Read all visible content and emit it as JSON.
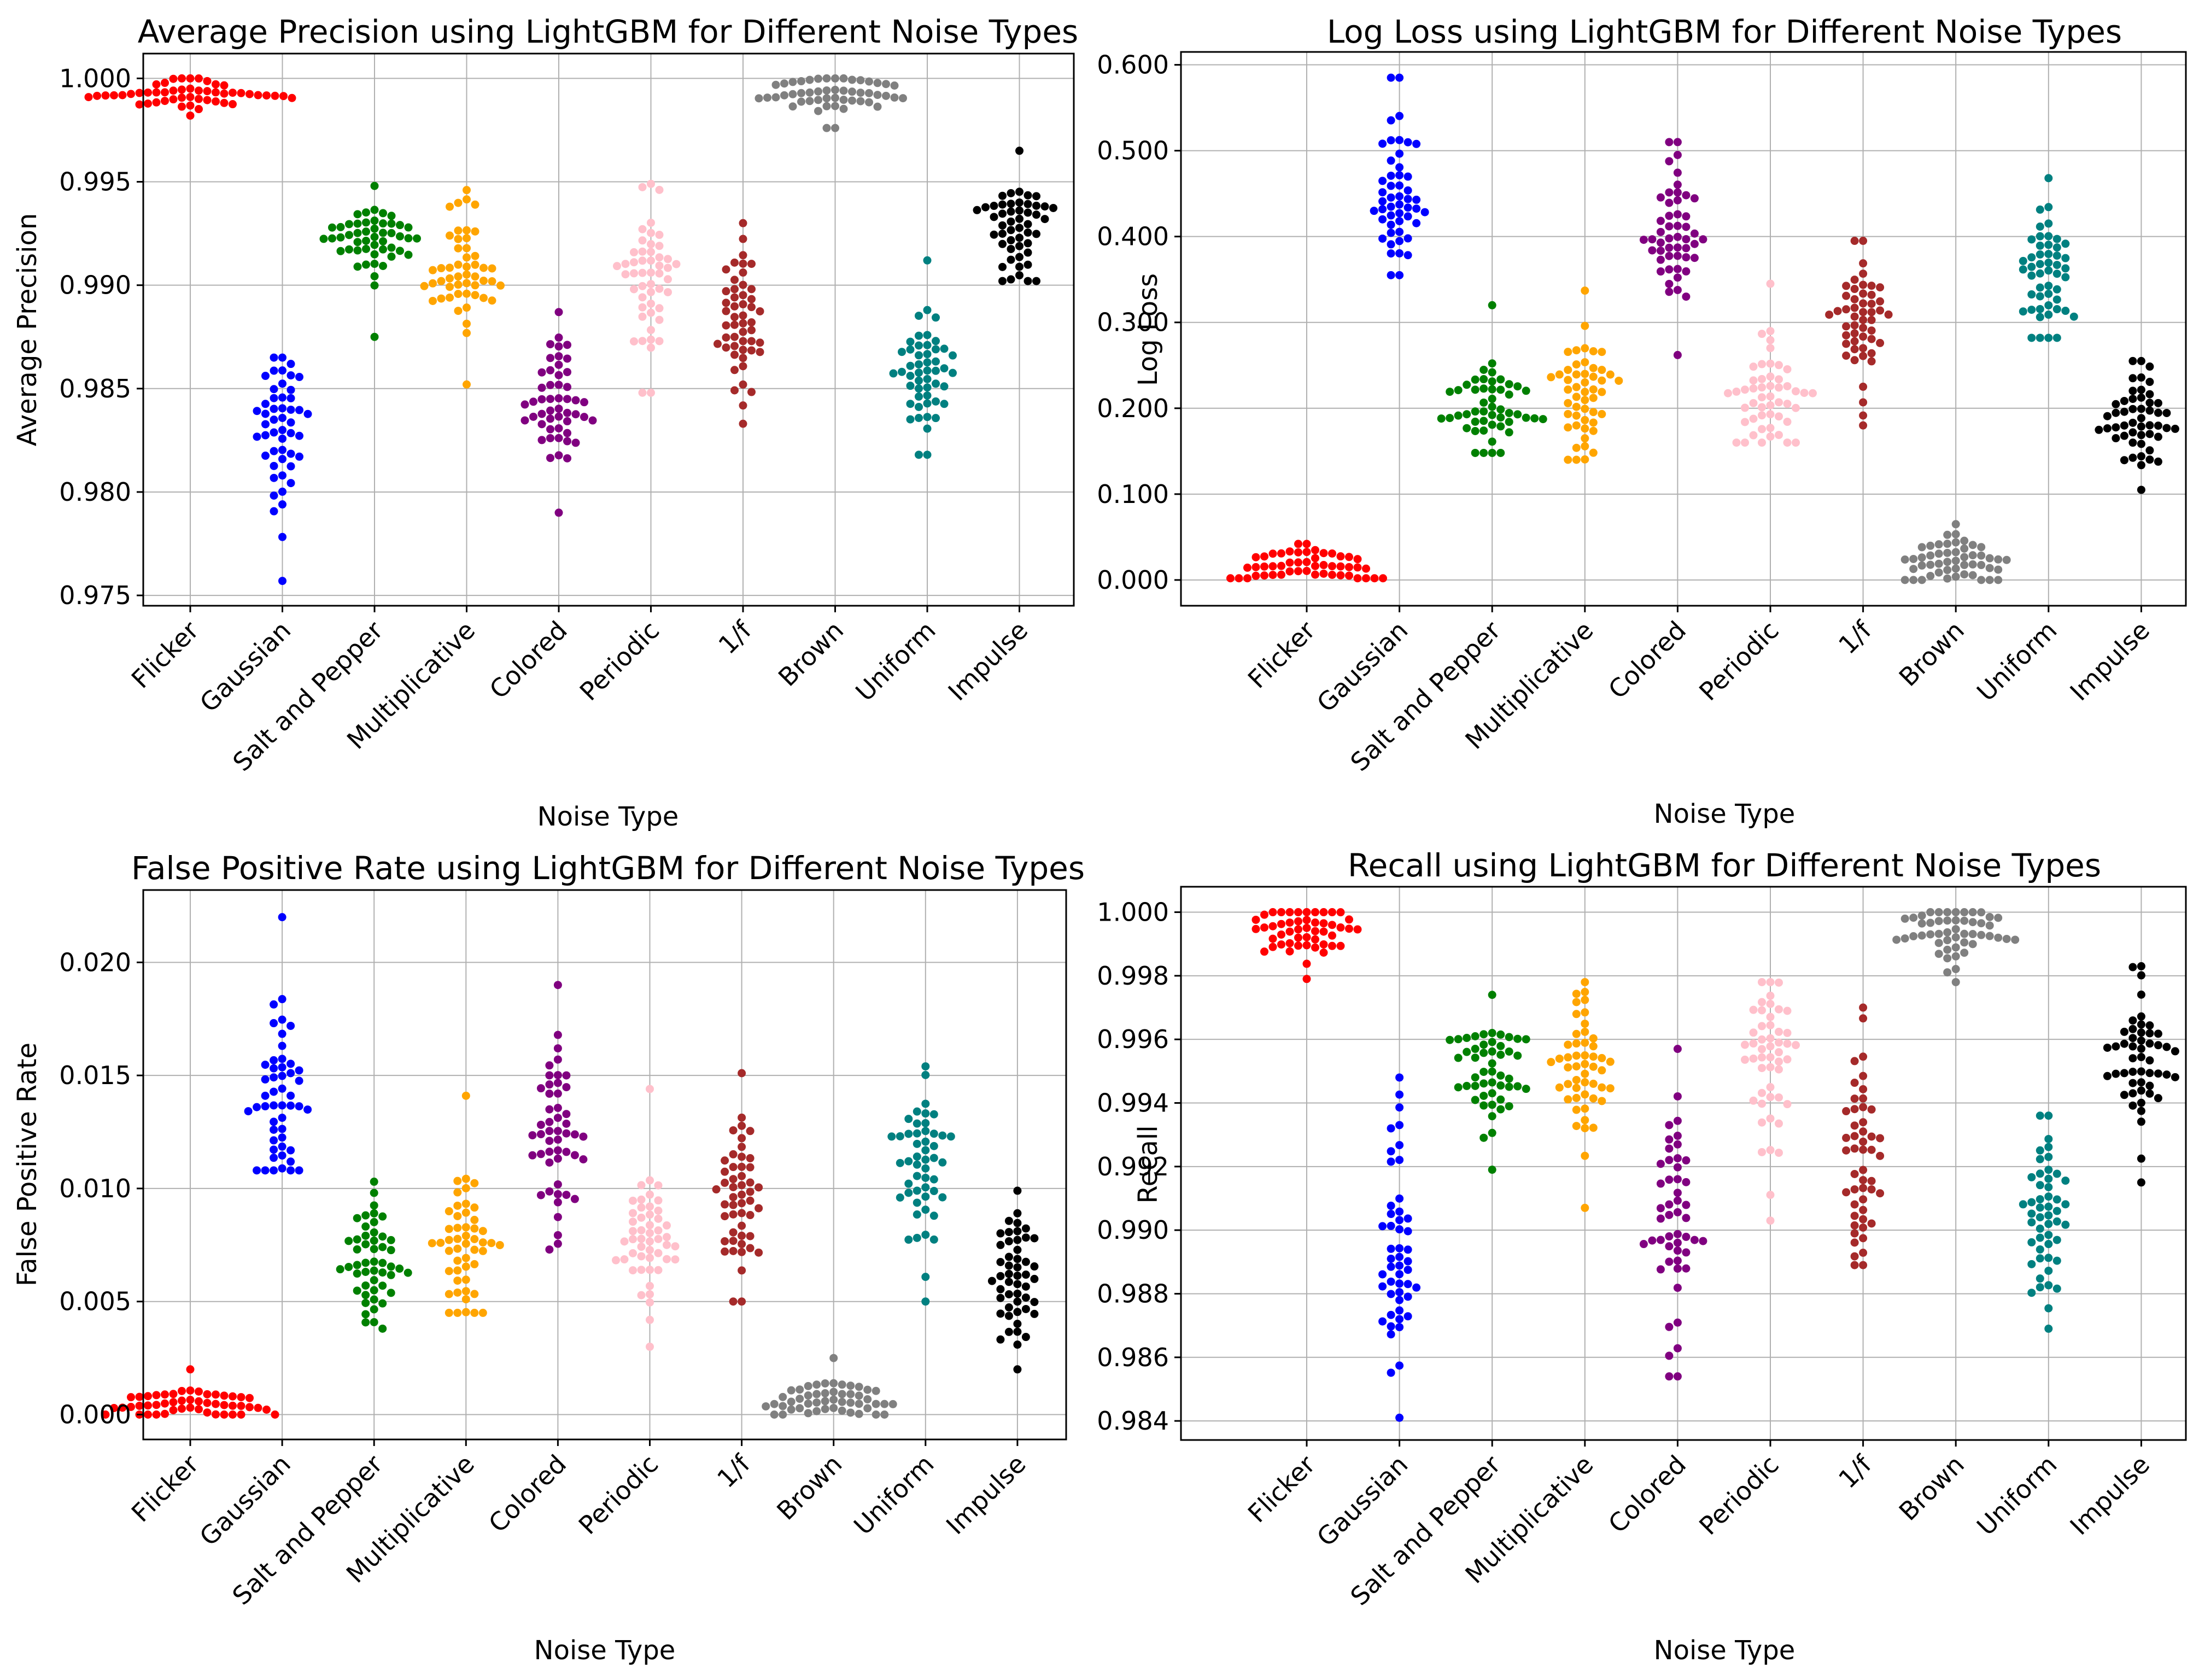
{
  "chart_data": [
    {
      "type": "swarm",
      "title": "Average Precision using LightGBM for Different Noise Types",
      "xlabel": "Noise Type",
      "ylabel": "Average Precision",
      "ylim": [
        0.9745,
        1.0012
      ],
      "yticks": [
        0.975,
        0.98,
        0.985,
        0.99,
        0.995,
        1.0
      ],
      "ytick_labels": [
        "0.975",
        "0.980",
        "0.985",
        "0.990",
        "0.995",
        "1.000"
      ],
      "grid": true,
      "categories": [
        "Flicker",
        "Gaussian",
        "Salt and Pepper",
        "Multiplicative",
        "Colored",
        "Periodic",
        "1/f",
        "Brown",
        "Uniform",
        "Impulse"
      ],
      "series": [
        {
          "name": "Flicker",
          "color": "#ff0000",
          "n": 50,
          "center": 0.9992,
          "spread": 0.0004,
          "min": 0.9982,
          "max": 1.0,
          "clip_max": 1.0
        },
        {
          "name": "Gaussian",
          "color": "#0000ff",
          "n": 50,
          "center": 0.9828,
          "spread": 0.0022,
          "min": 0.9757,
          "max": 0.9865
        },
        {
          "name": "Salt and Pepper",
          "color": "#008000",
          "n": 50,
          "center": 0.992,
          "spread": 0.0011,
          "min": 0.9875,
          "max": 0.9948
        },
        {
          "name": "Multiplicative",
          "color": "#ffa500",
          "n": 50,
          "center": 0.9908,
          "spread": 0.0014,
          "min": 0.9852,
          "max": 0.9946
        },
        {
          "name": "Colored",
          "color": "#800080",
          "n": 50,
          "center": 0.984,
          "spread": 0.0016,
          "min": 0.979,
          "max": 0.9887
        },
        {
          "name": "Periodic",
          "color": "#ffc0cb",
          "n": 50,
          "center": 0.9905,
          "spread": 0.0019,
          "min": 0.9848,
          "max": 0.9949
        },
        {
          "name": "1/f",
          "color": "#a52a2a",
          "n": 50,
          "center": 0.9882,
          "spread": 0.0017,
          "min": 0.9833,
          "max": 0.993
        },
        {
          "name": "Brown",
          "color": "#808080",
          "n": 50,
          "center": 0.9992,
          "spread": 0.0005,
          "min": 0.9976,
          "max": 1.0,
          "clip_max": 1.0
        },
        {
          "name": "Uniform",
          "color": "#008080",
          "n": 50,
          "center": 0.9858,
          "spread": 0.0016,
          "min": 0.9818,
          "max": 0.9912
        },
        {
          "name": "Impulse",
          "color": "#000000",
          "n": 50,
          "center": 0.9928,
          "spread": 0.0015,
          "min": 0.9902,
          "max": 0.9965
        }
      ]
    },
    {
      "type": "swarm",
      "title": "Log Loss using LightGBM for Different Noise Types",
      "xlabel": "Noise Type",
      "ylabel": "Log Loss",
      "ylim": [
        -0.03,
        0.615
      ],
      "yticks": [
        0.0,
        0.1,
        0.2,
        0.3,
        0.4,
        0.5,
        0.6
      ],
      "ytick_labels": [
        "0.000",
        "0.100",
        "0.200",
        "0.300",
        "0.400",
        "0.500",
        "0.600"
      ],
      "grid": true,
      "categories": [
        "Flicker",
        "Gaussian",
        "Salt and Pepper",
        "Multiplicative",
        "Colored",
        "Periodic",
        "1/f",
        "Brown",
        "Uniform",
        "Impulse"
      ],
      "series": [
        {
          "name": "Flicker",
          "color": "#ff0000",
          "n": 50,
          "center": 0.018,
          "spread": 0.012,
          "min": 0.002,
          "max": 0.042,
          "clip_min": 0.0
        },
        {
          "name": "Gaussian",
          "color": "#0000ff",
          "n": 50,
          "center": 0.44,
          "spread": 0.05,
          "min": 0.355,
          "max": 0.585
        },
        {
          "name": "Salt and Pepper",
          "color": "#008000",
          "n": 50,
          "center": 0.2,
          "spread": 0.03,
          "min": 0.148,
          "max": 0.32
        },
        {
          "name": "Multiplicative",
          "color": "#ffa500",
          "n": 50,
          "center": 0.215,
          "spread": 0.035,
          "min": 0.14,
          "max": 0.337
        },
        {
          "name": "Colored",
          "color": "#800080",
          "n": 50,
          "center": 0.405,
          "spread": 0.045,
          "min": 0.262,
          "max": 0.51
        },
        {
          "name": "Periodic",
          "color": "#ffc0cb",
          "n": 50,
          "center": 0.21,
          "spread": 0.04,
          "min": 0.16,
          "max": 0.345
        },
        {
          "name": "1/f",
          "color": "#a52a2a",
          "n": 50,
          "center": 0.305,
          "spread": 0.045,
          "min": 0.18,
          "max": 0.395
        },
        {
          "name": "Brown",
          "color": "#808080",
          "n": 50,
          "center": 0.02,
          "spread": 0.015,
          "min": 0.0,
          "max": 0.065,
          "clip_min": 0.0
        },
        {
          "name": "Uniform",
          "color": "#008080",
          "n": 50,
          "center": 0.36,
          "spread": 0.04,
          "min": 0.282,
          "max": 0.468
        },
        {
          "name": "Impulse",
          "color": "#000000",
          "n": 50,
          "center": 0.185,
          "spread": 0.035,
          "min": 0.105,
          "max": 0.255
        }
      ]
    },
    {
      "type": "swarm",
      "title": "False Positive Rate using LightGBM for Different Noise Types",
      "xlabel": "Noise Type",
      "ylabel": "False Positive Rate",
      "ylim": [
        -0.0011,
        0.0232
      ],
      "yticks": [
        0.0,
        0.005,
        0.01,
        0.015,
        0.02
      ],
      "ytick_labels": [
        "0.000",
        "0.005",
        "0.010",
        "0.015",
        "0.020"
      ],
      "grid": true,
      "categories": [
        "Flicker",
        "Gaussian",
        "Salt and Pepper",
        "Multiplicative",
        "Colored",
        "Periodic",
        "1/f",
        "Brown",
        "Uniform",
        "Impulse"
      ],
      "series": [
        {
          "name": "Flicker",
          "color": "#ff0000",
          "n": 50,
          "center": 0.0004,
          "spread": 0.0004,
          "min": 0.0,
          "max": 0.002,
          "clip_min": 0.0
        },
        {
          "name": "Gaussian",
          "color": "#0000ff",
          "n": 50,
          "center": 0.0138,
          "spread": 0.0022,
          "min": 0.0108,
          "max": 0.022
        },
        {
          "name": "Salt and Pepper",
          "color": "#008000",
          "n": 50,
          "center": 0.0065,
          "spread": 0.0013,
          "min": 0.0038,
          "max": 0.0103
        },
        {
          "name": "Multiplicative",
          "color": "#ffa500",
          "n": 50,
          "center": 0.0072,
          "spread": 0.0013,
          "min": 0.0045,
          "max": 0.0141
        },
        {
          "name": "Colored",
          "color": "#800080",
          "n": 50,
          "center": 0.0128,
          "spread": 0.0019,
          "min": 0.0073,
          "max": 0.019
        },
        {
          "name": "Periodic",
          "color": "#ffc0cb",
          "n": 50,
          "center": 0.0075,
          "spread": 0.0016,
          "min": 0.003,
          "max": 0.0144
        },
        {
          "name": "1/f",
          "color": "#a52a2a",
          "n": 50,
          "center": 0.0095,
          "spread": 0.0017,
          "min": 0.005,
          "max": 0.0151
        },
        {
          "name": "Brown",
          "color": "#808080",
          "n": 50,
          "center": 0.0006,
          "spread": 0.0005,
          "min": 0.0,
          "max": 0.0025,
          "clip_min": 0.0
        },
        {
          "name": "Uniform",
          "color": "#008080",
          "n": 50,
          "center": 0.0112,
          "spread": 0.0019,
          "min": 0.005,
          "max": 0.0154
        },
        {
          "name": "Impulse",
          "color": "#000000",
          "n": 50,
          "center": 0.0058,
          "spread": 0.0017,
          "min": 0.002,
          "max": 0.0099
        }
      ]
    },
    {
      "type": "swarm",
      "title": "Recall using LightGBM for Different Noise Types",
      "xlabel": "Noise Type",
      "ylabel": "Recall",
      "ylim": [
        0.9834,
        1.0008
      ],
      "yticks": [
        0.984,
        0.986,
        0.988,
        0.99,
        0.992,
        0.994,
        0.996,
        0.998,
        1.0
      ],
      "ytick_labels": [
        "0.984",
        "0.986",
        "0.988",
        "0.990",
        "0.992",
        "0.994",
        "0.996",
        "0.998",
        "1.000"
      ],
      "grid": true,
      "categories": [
        "Flicker",
        "Gaussian",
        "Salt and Pepper",
        "Multiplicative",
        "Colored",
        "Periodic",
        "1/f",
        "Brown",
        "Uniform",
        "Impulse"
      ],
      "series": [
        {
          "name": "Flicker",
          "color": "#ff0000",
          "n": 50,
          "center": 0.9996,
          "spread": 0.0005,
          "min": 0.9979,
          "max": 1.0,
          "clip_max": 1.0
        },
        {
          "name": "Gaussian",
          "color": "#0000ff",
          "n": 50,
          "center": 0.9895,
          "spread": 0.0019,
          "min": 0.9841,
          "max": 0.9948
        },
        {
          "name": "Salt and Pepper",
          "color": "#008000",
          "n": 50,
          "center": 0.995,
          "spread": 0.0012,
          "min": 0.9919,
          "max": 0.9974
        },
        {
          "name": "Multiplicative",
          "color": "#ffa500",
          "n": 50,
          "center": 0.9952,
          "spread": 0.0012,
          "min": 0.9907,
          "max": 0.9978
        },
        {
          "name": "Colored",
          "color": "#800080",
          "n": 50,
          "center": 0.9902,
          "spread": 0.0021,
          "min": 0.9854,
          "max": 0.9957
        },
        {
          "name": "Periodic",
          "color": "#ffc0cb",
          "n": 50,
          "center": 0.9952,
          "spread": 0.0014,
          "min": 0.9903,
          "max": 0.9978
        },
        {
          "name": "1/f",
          "color": "#a52a2a",
          "n": 50,
          "center": 0.9925,
          "spread": 0.0019,
          "min": 0.9889,
          "max": 0.997
        },
        {
          "name": "Brown",
          "color": "#808080",
          "n": 50,
          "center": 0.9994,
          "spread": 0.0006,
          "min": 0.9978,
          "max": 1.0,
          "clip_max": 1.0
        },
        {
          "name": "Uniform",
          "color": "#008080",
          "n": 50,
          "center": 0.9905,
          "spread": 0.0016,
          "min": 0.9869,
          "max": 0.9936
        },
        {
          "name": "Impulse",
          "color": "#000000",
          "n": 50,
          "center": 0.9952,
          "spread": 0.0012,
          "min": 0.9915,
          "max": 0.9983
        }
      ]
    }
  ]
}
